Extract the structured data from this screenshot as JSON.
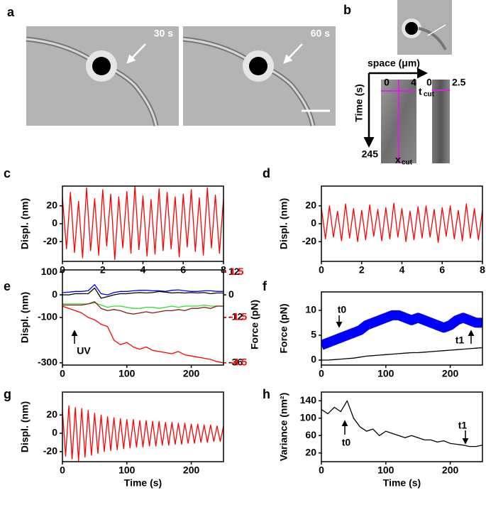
{
  "panels": {
    "a": {
      "label": "a",
      "image_times": [
        "30 s",
        "60 s"
      ]
    },
    "b": {
      "label": "b",
      "x_axis_label": "space (μm)",
      "y_axis_label": "Time (s)",
      "kymo1_start": "0",
      "kymo1_end": "4",
      "time_end": "245",
      "t_cut": "t",
      "t_cut_sub": "cut",
      "x_cut": "x",
      "x_cut_sub": "cut",
      "kymo2_start": "0",
      "kymo2_end": "2.5"
    }
  },
  "chart_data": [
    {
      "type": "line",
      "panel": "c",
      "y_label": "Displ. (nm)",
      "xlim": [
        0,
        8
      ],
      "xticks": [
        0,
        2,
        4,
        6,
        8
      ],
      "ylim": [
        -42,
        42
      ],
      "yticks": [
        20,
        0,
        -20
      ],
      "x": [
        0,
        0.2,
        0.4,
        0.6,
        0.8,
        1,
        1.2,
        1.4,
        1.6,
        1.8,
        2,
        2.2,
        2.4,
        2.6,
        2.8,
        3,
        3.2,
        3.4,
        3.6,
        3.8,
        4,
        4.2,
        4.4,
        4.6,
        4.8,
        5,
        5.2,
        5.4,
        5.6,
        5.8,
        6,
        6.2,
        6.4,
        6.6,
        6.8,
        7,
        7.2,
        7.4,
        7.6,
        7.8,
        8
      ],
      "series": [
        {
          "color": "#ff0000",
          "values": [
            30,
            -28,
            35,
            -32,
            25,
            -38,
            40,
            -30,
            28,
            -35,
            38,
            -25,
            33,
            -40,
            30,
            -27,
            36,
            -33,
            42,
            -29,
            31,
            -36,
            27,
            -34,
            39,
            -30,
            35,
            -28,
            30,
            -37,
            33,
            -26,
            38,
            -31,
            29,
            -35,
            40,
            -27,
            32,
            -33,
            28
          ]
        }
      ]
    },
    {
      "type": "line",
      "panel": "d",
      "y_label": "Displ. (nm)",
      "xlim": [
        0,
        8
      ],
      "xticks": [
        0,
        2,
        4,
        6,
        8
      ],
      "ylim": [
        -42,
        42
      ],
      "yticks": [
        20,
        0,
        -20
      ],
      "x": [
        0,
        0.2,
        0.4,
        0.6,
        0.8,
        1,
        1.2,
        1.4,
        1.6,
        1.8,
        2,
        2.2,
        2.4,
        2.6,
        2.8,
        3,
        3.2,
        3.4,
        3.6,
        3.8,
        4,
        4.2,
        4.4,
        4.6,
        4.8,
        5,
        5.2,
        5.4,
        5.6,
        5.8,
        6,
        6.2,
        6.4,
        6.6,
        6.8,
        7,
        7.2,
        7.4,
        7.6,
        7.8,
        8
      ],
      "series": [
        {
          "color": "#ff0000",
          "values": [
            18,
            -17,
            20,
            -15,
            14,
            -19,
            22,
            -16,
            17,
            -20,
            15,
            -18,
            21,
            -14,
            16,
            -19,
            18,
            -17,
            23,
            -15,
            17,
            -20,
            14,
            -18,
            19,
            -16,
            20,
            -15,
            16,
            -21,
            18,
            -14,
            20,
            -17,
            15,
            -19,
            22,
            -16,
            17,
            -18,
            15
          ]
        }
      ]
    },
    {
      "type": "line",
      "panel": "e",
      "y_label": "Displ. (nm)",
      "y2_label": "Force (pN)",
      "annotations": [
        "UV"
      ],
      "xlim": [
        0,
        250
      ],
      "xticks": [
        0,
        100,
        200
      ],
      "ylim": [
        -310,
        110
      ],
      "yticks": [
        100,
        0,
        -100,
        -300
      ],
      "y2lim": [
        -37.2,
        13.2
      ],
      "y2ticks": [
        12,
        0,
        -12,
        -36
      ],
      "y3lim": [
        -4.65,
        1.65
      ],
      "y3ticks": [
        1.5,
        -1.5,
        -4.5
      ],
      "y3_color": "#ff0000",
      "x": [
        0,
        10,
        20,
        30,
        40,
        50,
        60,
        70,
        80,
        90,
        100,
        110,
        120,
        130,
        140,
        150,
        160,
        170,
        180,
        190,
        200,
        210,
        220,
        230,
        240,
        250
      ],
      "series": [
        {
          "color": "#0000ff",
          "axis": "y",
          "values": [
            10,
            12,
            15,
            15,
            18,
            45,
            5,
            0,
            10,
            15,
            15,
            18,
            20,
            20,
            18,
            18,
            15,
            20,
            22,
            18,
            15,
            15,
            18,
            18,
            15,
            15
          ]
        },
        {
          "color": "#33dd33",
          "axis": "y",
          "values": [
            -40,
            -40,
            -40,
            -40,
            -40,
            -35,
            -45,
            -55,
            -50,
            -50,
            -55,
            -60,
            -60,
            -55,
            -55,
            -60,
            -55,
            -50,
            -55,
            -50,
            -50,
            -50,
            -45,
            -50,
            -50,
            -50
          ]
        },
        {
          "color": "#000000",
          "axis": "y",
          "values": [
            0,
            0,
            5,
            5,
            5,
            30,
            -15,
            -8,
            0,
            5,
            5,
            8,
            10,
            8,
            10,
            15,
            12,
            8,
            10,
            8,
            10,
            8,
            10,
            5,
            8,
            8
          ]
        },
        {
          "color": "#8b1a1a",
          "axis": "y",
          "values": [
            -45,
            -45,
            -45,
            -45,
            -40,
            -30,
            -60,
            -70,
            -65,
            -70,
            -80,
            -85,
            -80,
            -75,
            -80,
            -75,
            -70,
            -70,
            -65,
            -70,
            -60,
            -60,
            -55,
            -60,
            -50,
            -50
          ]
        },
        {
          "color": "#ff0000",
          "axis": "y",
          "values": [
            -50,
            -60,
            -70,
            -80,
            -100,
            -110,
            -130,
            -140,
            -200,
            -220,
            -210,
            -230,
            -240,
            -230,
            -245,
            -250,
            -255,
            -260,
            -250,
            -265,
            -270,
            -275,
            -280,
            -285,
            -295,
            -300
          ]
        }
      ]
    },
    {
      "type": "line",
      "panel": "f",
      "y_label": "Force (pN)",
      "annotations": [
        "t0",
        "t1"
      ],
      "xlim": [
        0,
        250
      ],
      "xticks": [
        0,
        100,
        200
      ],
      "ylim": [
        -1,
        13.7
      ],
      "yticks": [
        0,
        5,
        10
      ],
      "x": [
        0,
        10,
        20,
        30,
        40,
        50,
        60,
        70,
        80,
        90,
        100,
        110,
        120,
        130,
        140,
        150,
        160,
        170,
        180,
        190,
        200,
        210,
        220,
        230,
        240,
        250
      ],
      "series": [
        {
          "color": "#0000ff",
          "style": "band",
          "values": [
            3,
            3.5,
            4,
            4.5,
            5,
            5.5,
            6,
            7,
            7.5,
            8,
            8.5,
            9,
            9,
            8.5,
            8,
            8.5,
            8,
            7.5,
            7,
            6.5,
            7,
            8,
            8.5,
            8,
            7.5,
            7.5
          ]
        },
        {
          "color": "#000000",
          "values": [
            0,
            0,
            0.1,
            0.2,
            0.3,
            0.4,
            0.6,
            0.8,
            0.9,
            1,
            1.1,
            1.2,
            1.3,
            1.4,
            1.5,
            1.5,
            1.6,
            1.7,
            1.8,
            1.9,
            2,
            2.1,
            2.2,
            2.3,
            2.4,
            2.5
          ]
        }
      ]
    },
    {
      "type": "line",
      "panel": "g",
      "y_label": "Displ. (nm)",
      "x_label": "Time (s)",
      "xlim": [
        0,
        250
      ],
      "xticks": [
        0,
        100,
        200
      ],
      "ylim": [
        -31,
        45
      ],
      "yticks": [
        20,
        0,
        -20
      ],
      "x": [
        0,
        5,
        10,
        15,
        20,
        25,
        30,
        35,
        40,
        45,
        50,
        55,
        60,
        65,
        70,
        75,
        80,
        85,
        90,
        95,
        100,
        105,
        110,
        115,
        120,
        125,
        130,
        135,
        140,
        145,
        150,
        155,
        160,
        165,
        170,
        175,
        180,
        185,
        190,
        195,
        200,
        205,
        210,
        215,
        220,
        225,
        230,
        235,
        240,
        245,
        250
      ],
      "series": [
        {
          "color": "#ff0000",
          "values": [
            25,
            -25,
            30,
            -28,
            28,
            -30,
            27,
            -26,
            25,
            -24,
            22,
            -22,
            20,
            -20,
            18,
            -19,
            17,
            -18,
            16,
            -17,
            15,
            -16,
            15,
            -15,
            14,
            -15,
            14,
            -14,
            13,
            -14,
            13,
            -13,
            12,
            -13,
            12,
            -12,
            11,
            -12,
            11,
            -11,
            10,
            -11,
            10,
            -10,
            9,
            -10,
            9,
            -9,
            8,
            -9,
            8
          ]
        }
      ]
    },
    {
      "type": "line",
      "panel": "h",
      "y_label": "Variance (nm²)",
      "x_label": "Time (s)",
      "annotations": [
        "t0",
        "t1"
      ],
      "xlim": [
        0,
        250
      ],
      "xticks": [
        0,
        100,
        200
      ],
      "ylim": [
        0,
        160
      ],
      "yticks": [
        140,
        100,
        60,
        20
      ],
      "x": [
        0,
        10,
        20,
        30,
        40,
        50,
        60,
        70,
        80,
        90,
        100,
        110,
        120,
        130,
        140,
        150,
        160,
        170,
        180,
        190,
        200,
        210,
        220,
        230,
        240,
        250
      ],
      "series": [
        {
          "color": "#000000",
          "values": [
            120,
            110,
            125,
            115,
            140,
            100,
            80,
            70,
            75,
            60,
            70,
            65,
            60,
            55,
            60,
            55,
            50,
            50,
            45,
            48,
            42,
            40,
            38,
            35,
            35,
            38
          ]
        }
      ]
    }
  ]
}
